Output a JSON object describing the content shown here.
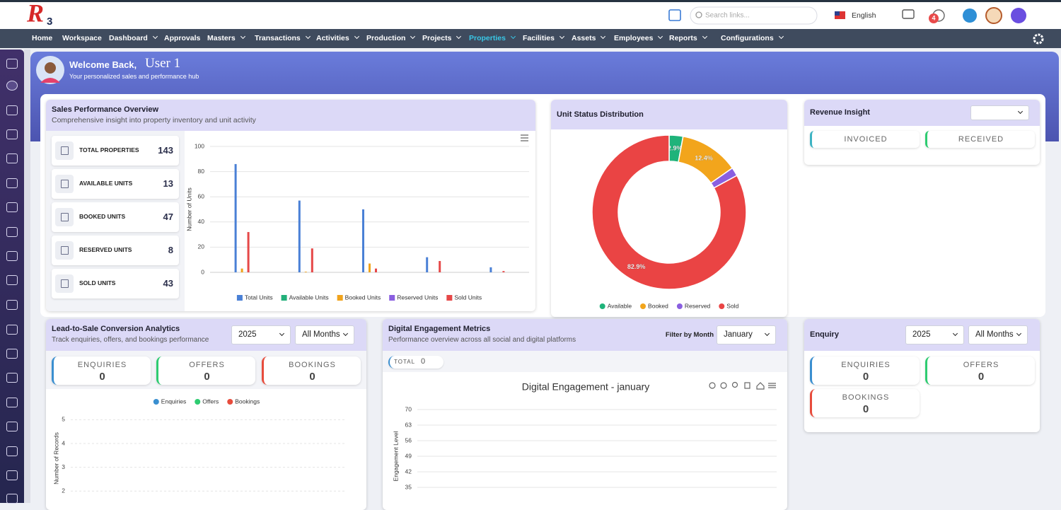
{
  "header": {
    "logo_letter": "R",
    "logo_number": "3",
    "search_placeholder": "Search links...",
    "language": "English",
    "notification_count": 4
  },
  "nav": {
    "items": [
      {
        "label": "Home",
        "dropdown": false
      },
      {
        "label": "Workspace",
        "dropdown": false
      },
      {
        "label": "Dashboard",
        "dropdown": true
      },
      {
        "label": "Approvals",
        "dropdown": false
      },
      {
        "label": "Masters",
        "dropdown": true
      },
      {
        "label": "Transactions",
        "dropdown": true
      },
      {
        "label": "Activities",
        "dropdown": true
      },
      {
        "label": "Production",
        "dropdown": true
      },
      {
        "label": "Projects",
        "dropdown": true
      },
      {
        "label": "Properties",
        "dropdown": true,
        "active": true
      },
      {
        "label": "Facilities",
        "dropdown": true
      },
      {
        "label": "Assets",
        "dropdown": true
      },
      {
        "label": "Employees",
        "dropdown": true
      },
      {
        "label": "Reports",
        "dropdown": true
      },
      {
        "label": "Configurations",
        "dropdown": true
      }
    ]
  },
  "welcome": {
    "greeting": "Welcome Back,",
    "user": "User 1",
    "subtitle": "Your personalized sales and performance hub"
  },
  "sales_overview": {
    "title": "Sales Performance Overview",
    "subtitle": "Comprehensive insight into property inventory and unit activity",
    "stats": [
      {
        "label": "TOTAL PROPERTIES",
        "value": 143
      },
      {
        "label": "AVAILABLE UNITS",
        "value": 13
      },
      {
        "label": "BOOKED UNITS",
        "value": 47
      },
      {
        "label": "RESERVED UNITS",
        "value": 8
      },
      {
        "label": "SOLD UNITS",
        "value": 43
      }
    ]
  },
  "unit_status": {
    "title": "Unit Status Distribution"
  },
  "revenue_insight": {
    "title": "Revenue Insight",
    "tabs": [
      "INVOICED",
      "RECEIVED"
    ]
  },
  "lead_conversion": {
    "title": "Lead-to-Sale Conversion Analytics",
    "subtitle": "Track enquiries, offers, and bookings performance",
    "year": "2025",
    "month": "All Months",
    "stats": [
      {
        "label": "ENQUIRIES",
        "value": 0
      },
      {
        "label": "OFFERS",
        "value": 0
      },
      {
        "label": "BOOKINGS",
        "value": 0
      }
    ]
  },
  "digital_engagement": {
    "title": "Digital Engagement Metrics",
    "subtitle": "Performance overview across all social and digital platforms",
    "filter_label": "Filter by Month",
    "month": "January",
    "total_label": "TOTAL",
    "total": 0
  },
  "enquiry": {
    "title": "Enquiry",
    "year": "2025",
    "month": "All Months",
    "stats": [
      {
        "label": "ENQUIRIES",
        "value": 0
      },
      {
        "label": "OFFERS",
        "value": 0
      },
      {
        "label": "BOOKINGS",
        "value": 0
      }
    ]
  },
  "chart_data": [
    {
      "type": "bar",
      "categories": [
        null,
        null,
        null,
        null,
        null
      ],
      "y_label": "Number of Units",
      "ylim": [
        0,
        100
      ],
      "yticks": [
        0,
        20,
        40,
        60,
        80,
        100
      ],
      "grid": true,
      "legend": "bottom",
      "series": [
        {
          "name": "Total Units",
          "color": "#4a80d6",
          "values": [
            86,
            57,
            50,
            12,
            4
          ]
        },
        {
          "name": "Available Units",
          "color": "#22b07a",
          "values": [
            0,
            0,
            0,
            0,
            0
          ]
        },
        {
          "name": "Booked Units",
          "color": "#f0a31c",
          "values": [
            3,
            0.5,
            7,
            0,
            0
          ]
        },
        {
          "name": "Reserved Units",
          "color": "#8a5fe0",
          "values": [
            0,
            0,
            0,
            0,
            0
          ]
        },
        {
          "name": "Sold Units",
          "color": "#e64848",
          "values": [
            32,
            19,
            3,
            9,
            1
          ]
        }
      ]
    },
    {
      "type": "pie",
      "donut": true,
      "categories": [
        "Available",
        "Booked",
        "Reserved",
        "Sold"
      ],
      "values": [
        2.9,
        12.4,
        1.8,
        82.9
      ],
      "value_labels": [
        "2.9%",
        "12.4%",
        null,
        "82.9%"
      ],
      "colors": [
        "#1fb37a",
        "#f2a51c",
        "#8a5fe0",
        "#ea4444"
      ],
      "legend": "bottom"
    },
    {
      "type": "line",
      "y_label": "Number of Records",
      "ylim": [
        1.5,
        5.25
      ],
      "yticks": [
        2,
        3,
        4,
        5
      ],
      "grid": true,
      "legend": "top",
      "series": [
        {
          "name": "Enquiries",
          "color": "#3a8fd0",
          "values": []
        },
        {
          "name": "Offers",
          "color": "#2ecc71",
          "values": []
        },
        {
          "name": "Bookings",
          "color": "#e74c3c",
          "values": []
        }
      ]
    },
    {
      "type": "line",
      "title": "Digital Engagement - january",
      "y_label": "Engagement Level",
      "ylim": [
        28,
        70
      ],
      "yticks": [
        35,
        42,
        49,
        56,
        63,
        70
      ],
      "grid": true
    }
  ]
}
